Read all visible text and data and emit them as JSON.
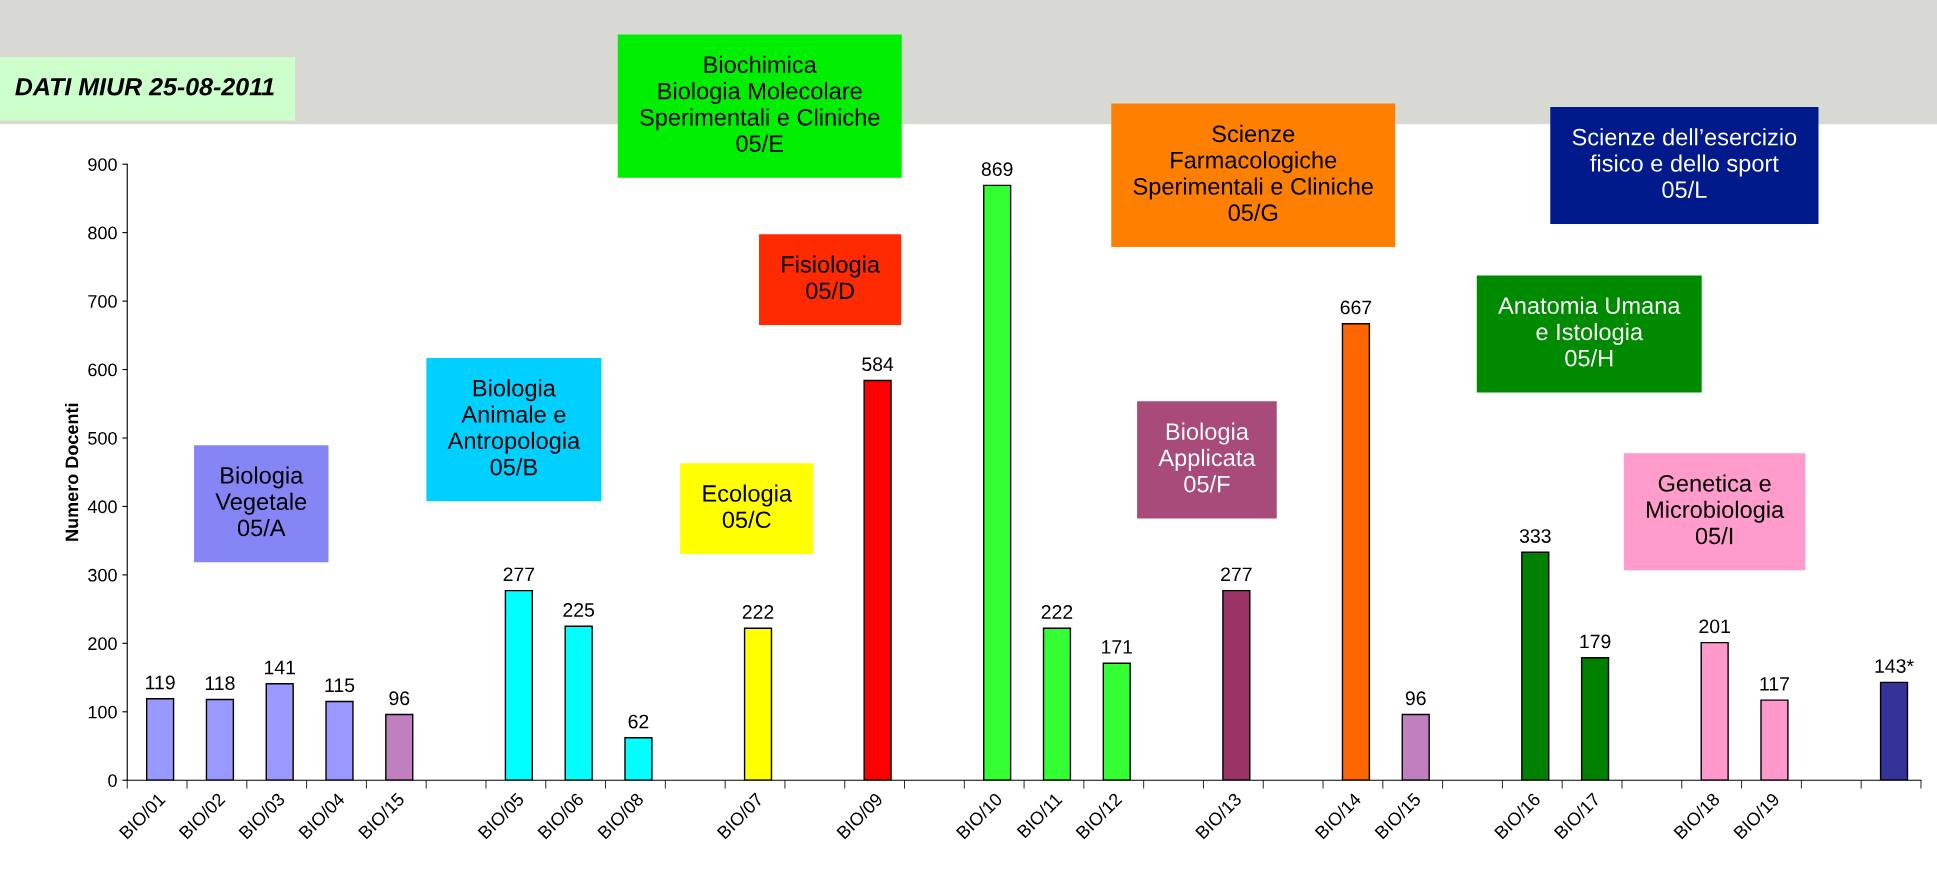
{
  "chart_data": {
    "type": "bar",
    "title": "DATI MIUR 25-08-2011",
    "ylabel": "Numero Docenti",
    "categories": [
      "BIO/01",
      "BIO/02",
      "BIO/03",
      "BIO/04",
      "BIO/15",
      null,
      "BIO/05",
      "BIO/06",
      "BIO/08",
      null,
      "BIO/07",
      null,
      "BIO/09",
      null,
      "BIO/10",
      "BIO/11",
      "BIO/12",
      null,
      "BIO/13",
      null,
      "BIO/14",
      "BIO/15",
      null,
      "BIO/16",
      "BIO/17",
      null,
      "BIO/18",
      "BIO/19",
      null,
      null
    ],
    "values": [
      119,
      118,
      141,
      115,
      96,
      null,
      277,
      225,
      62,
      null,
      222,
      null,
      584,
      null,
      869,
      222,
      171,
      null,
      277,
      null,
      667,
      96,
      null,
      333,
      179,
      null,
      201,
      117,
      null,
      143
    ],
    "value_labels": [
      "119",
      "118",
      "141",
      "115",
      "96",
      null,
      "277",
      "225",
      "62",
      null,
      "222",
      null,
      "584",
      null,
      "869",
      "222",
      "171",
      null,
      "277",
      null,
      "667",
      "96",
      null,
      "333",
      "179",
      null,
      "201",
      "117",
      null,
      "143*"
    ],
    "colors": [
      "#9999ff",
      "#9999ff",
      "#9999ff",
      "#9999ff",
      "#c080c0",
      null,
      "#00ffff",
      "#00ffff",
      "#00ffff",
      null,
      "#ffff00",
      null,
      "#ff0000",
      null,
      "#33ff33",
      "#33ff33",
      "#33ff33",
      null,
      "#993366",
      null,
      "#ff6600",
      "#c080c0",
      null,
      "#008000",
      "#008000",
      null,
      "#ff99cc",
      "#ff99cc",
      null,
      "#333399"
    ],
    "ylim": [
      0,
      900
    ],
    "yticks": [
      0,
      100,
      200,
      300,
      400,
      500,
      600,
      700,
      800,
      900
    ],
    "grid": false,
    "legend": false,
    "annotations": [
      "Biologia\nVegetale\n05/A",
      "Biologia\nAnimale e\nAntropologia\n05/B",
      "Ecologia\n05/C",
      "Fisiologia\n05/D",
      "Biochimica\nBiologia Molecolare\nSperimentali e Cliniche\n05/E",
      "Scienze\nFarmacologiche\nSperimentali e Cliniche\n05/G",
      "Biologia\nApplicata\n05/F",
      "Scienze dell’esercizio\nfisico e dello sport\n05/L",
      "Anatomia Umana\ne Istologia\n05/H",
      "Genetica e\nMicrobiologia\n05/I"
    ]
  }
}
